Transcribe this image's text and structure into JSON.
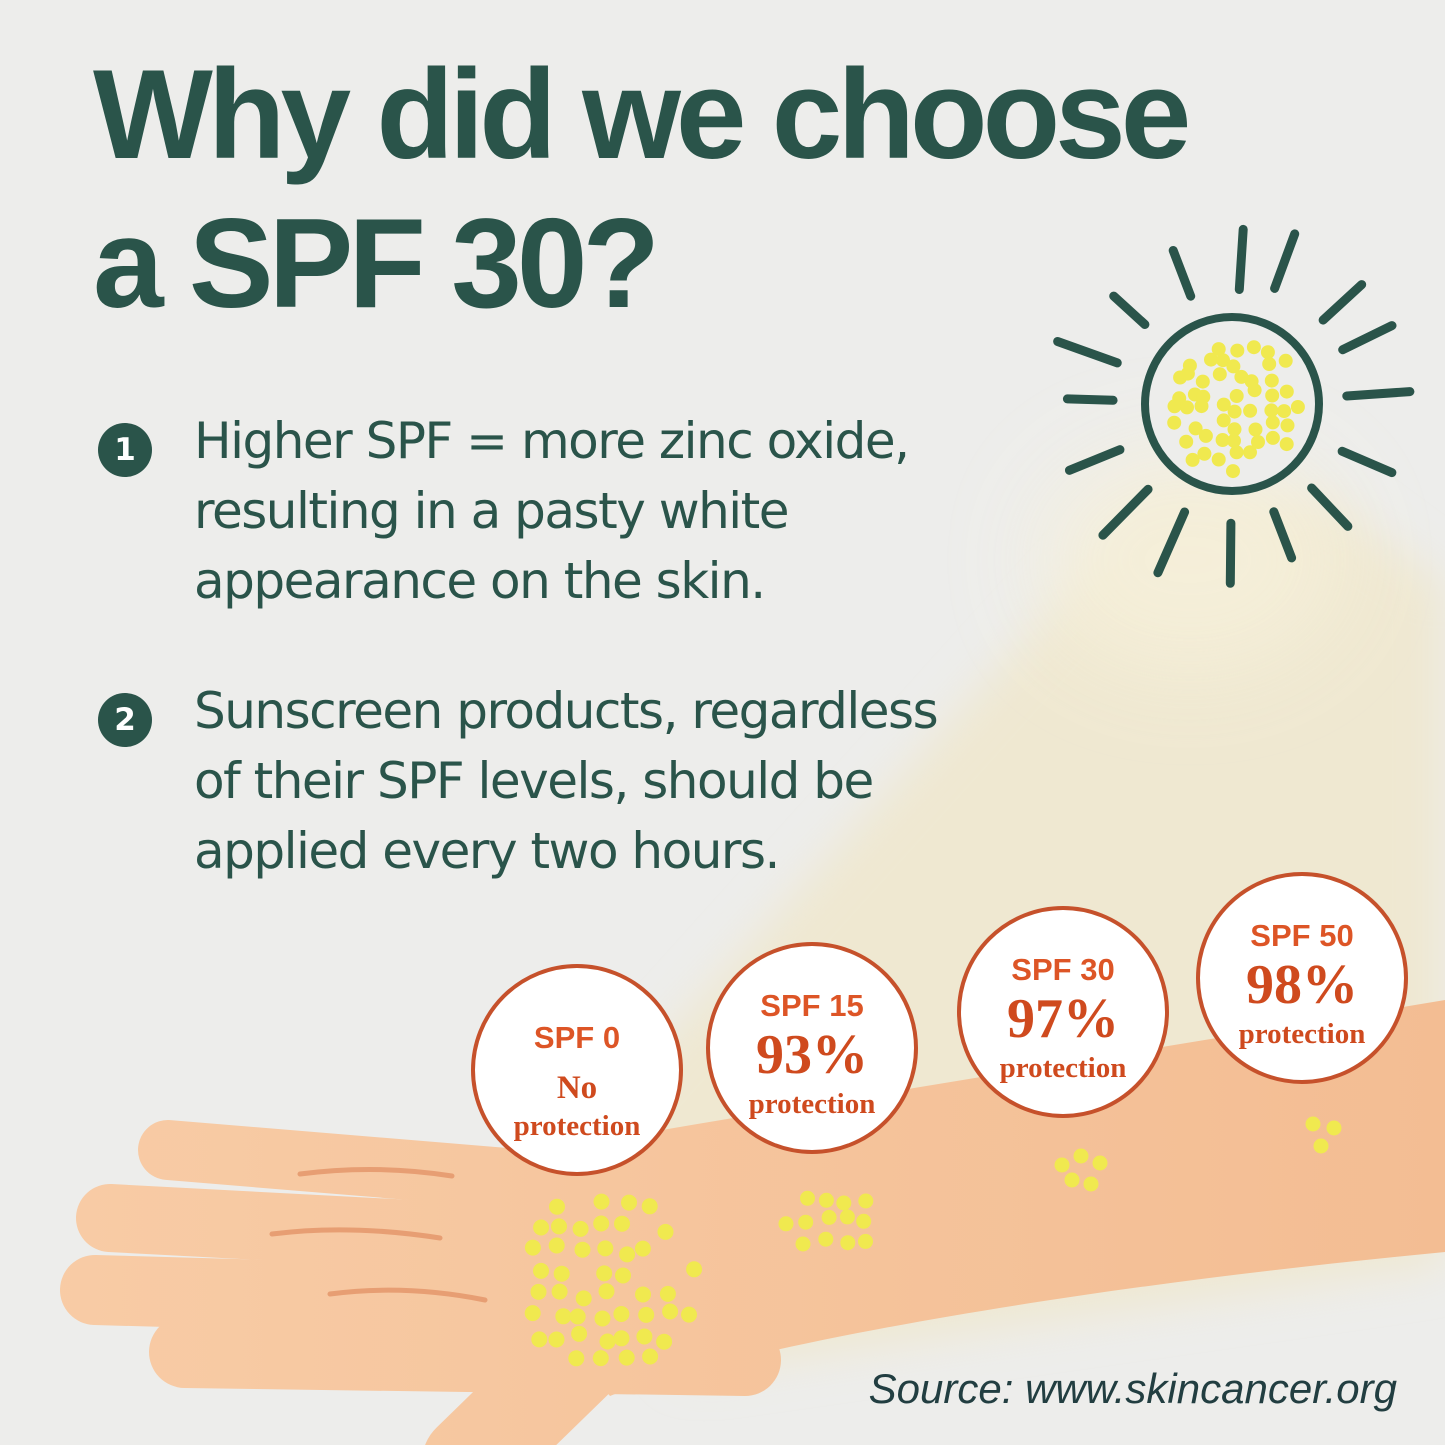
{
  "title": {
    "line1": "Why did we choose",
    "line2": "a SPF 30?"
  },
  "points": [
    {
      "number": "1",
      "lines": [
        "Higher SPF = more zinc oxide,",
        "resulting in a pasty white",
        "appearance on the skin."
      ]
    },
    {
      "number": "2",
      "lines": [
        "Sunscreen products, regardless",
        "of their SPF levels, should be",
        "applied every two hours."
      ]
    }
  ],
  "spf": {
    "items": [
      {
        "label": "SPF 0",
        "value": "No",
        "caption": "protection"
      },
      {
        "label": "SPF 15",
        "value": "93%",
        "caption": "protection"
      },
      {
        "label": "SPF 30",
        "value": "97%",
        "caption": "protection"
      },
      {
        "label": "SPF 50",
        "value": "98%",
        "caption": "protection"
      }
    ]
  },
  "source": {
    "text": "Source: www.skincancer.org"
  },
  "icons": {
    "sun": "sun-icon",
    "zinc_dots": "zinc-oxide-dots"
  },
  "colors": {
    "teal": "#2a544a",
    "orange_label": "#dd5526",
    "orange_serif": "#cf4a1e",
    "orange_border": "#c6512b",
    "dot_yellow": "#f0e94f",
    "skin": "#f6c49d",
    "skin_crease": "#e79e73",
    "beam_cream": "#efe8d1",
    "background": "#ededeb",
    "circle_fill": "#ffffff"
  }
}
